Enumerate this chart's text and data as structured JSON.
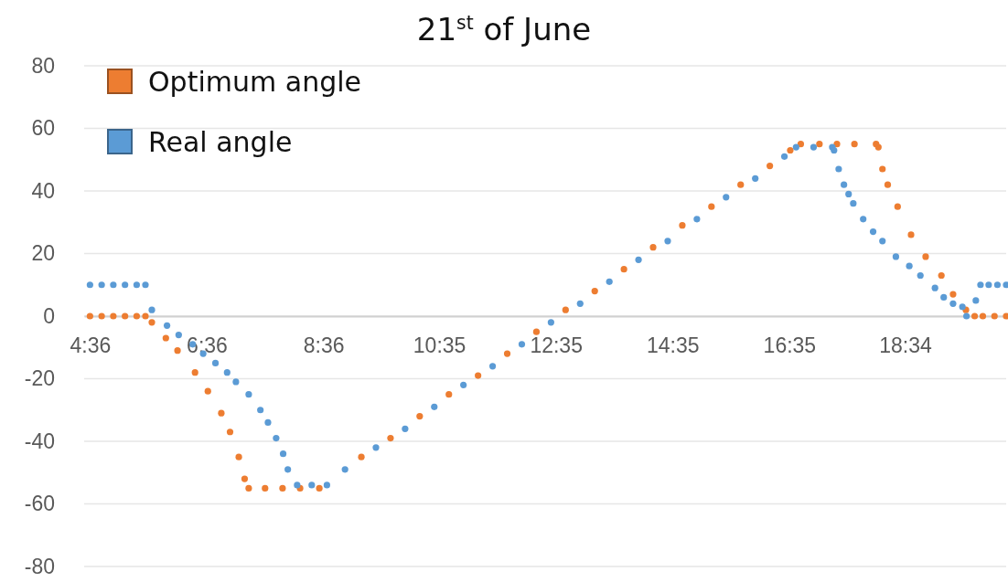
{
  "chart_data": {
    "type": "scatter",
    "title": "21$^{st}$ of June",
    "marker": "circle",
    "grid": "y",
    "legend": "top left",
    "xlim": [
      4.5,
      20.3
    ],
    "xticks": [
      {
        "value": 4.6,
        "label": "4:36"
      },
      {
        "value": 6.6,
        "label": "6:36"
      },
      {
        "value": 8.6,
        "label": "8:36"
      },
      {
        "value": 10.583,
        "label": "10:35"
      },
      {
        "value": 12.583,
        "label": "12:35"
      },
      {
        "value": 14.583,
        "label": "14:35"
      },
      {
        "value": 16.583,
        "label": "16:35"
      },
      {
        "value": 18.567,
        "label": "18:34"
      }
    ],
    "ylim": [
      -80,
      80
    ],
    "yticks": [
      -80,
      -60,
      -40,
      -20,
      0,
      20,
      40,
      60,
      80
    ],
    "series": [
      {
        "name": "Optimum angle",
        "color": "#ed7d31",
        "x": [
          4.6,
          4.8,
          5.0,
          5.2,
          5.4,
          5.55,
          5.66,
          5.9,
          6.1,
          6.4,
          6.62,
          6.85,
          7.0,
          7.15,
          7.25,
          7.32,
          7.6,
          7.9,
          8.2,
          8.53,
          9.25,
          9.75,
          10.25,
          10.75,
          11.25,
          11.75,
          12.25,
          12.75,
          13.25,
          13.75,
          14.25,
          14.75,
          15.25,
          15.75,
          16.25,
          16.6,
          16.78,
          17.1,
          17.4,
          17.7,
          18.07,
          18.11,
          18.18,
          18.27,
          18.44,
          18.67,
          18.92,
          19.19,
          19.39,
          19.61,
          19.76,
          19.9,
          20.1,
          20.3
        ],
        "values": [
          0,
          0,
          0,
          0,
          0,
          0,
          -2,
          -7,
          -11,
          -18,
          -24,
          -31,
          -37,
          -45,
          -52,
          -55,
          -55,
          -55,
          -55,
          -55,
          -45,
          -39,
          -32,
          -25,
          -19,
          -12,
          -5,
          2,
          8,
          15,
          22,
          29,
          35,
          42,
          48,
          53,
          55,
          55,
          55,
          55,
          55,
          54,
          47,
          42,
          35,
          26,
          19,
          13,
          7,
          2,
          0,
          0,
          0,
          0
        ]
      },
      {
        "name": "Real angle",
        "color": "#5b9bd5",
        "x": [
          4.6,
          4.8,
          5.0,
          5.2,
          5.4,
          5.55,
          5.66,
          5.92,
          6.12,
          6.36,
          6.54,
          6.75,
          6.95,
          7.1,
          7.32,
          7.52,
          7.65,
          7.79,
          7.91,
          7.99,
          8.15,
          8.4,
          8.66,
          8.97,
          9.5,
          10.0,
          10.5,
          11.0,
          11.5,
          12.0,
          12.5,
          13.0,
          13.5,
          14.0,
          14.5,
          15.0,
          15.5,
          16.0,
          16.5,
          16.7,
          17.0,
          17.32,
          17.35,
          17.43,
          17.52,
          17.6,
          17.68,
          17.85,
          18.02,
          18.18,
          18.41,
          18.64,
          18.83,
          19.08,
          19.23,
          19.39,
          19.55,
          19.62,
          19.78,
          19.86,
          20.0,
          20.15,
          20.3
        ],
        "values": [
          10,
          10,
          10,
          10,
          10,
          10,
          2,
          -3,
          -6,
          -9,
          -12,
          -15,
          -18,
          -21,
          -25,
          -30,
          -34,
          -39,
          -44,
          -49,
          -54,
          -54,
          -54,
          -49,
          -42,
          -36,
          -29,
          -22,
          -16,
          -9,
          -2,
          4,
          11,
          18,
          24,
          31,
          38,
          44,
          51,
          54,
          54,
          54,
          53,
          47,
          42,
          39,
          36,
          31,
          27,
          24,
          19,
          16,
          13,
          9,
          6,
          4,
          3,
          0,
          5,
          10,
          10,
          10,
          10
        ]
      }
    ]
  }
}
